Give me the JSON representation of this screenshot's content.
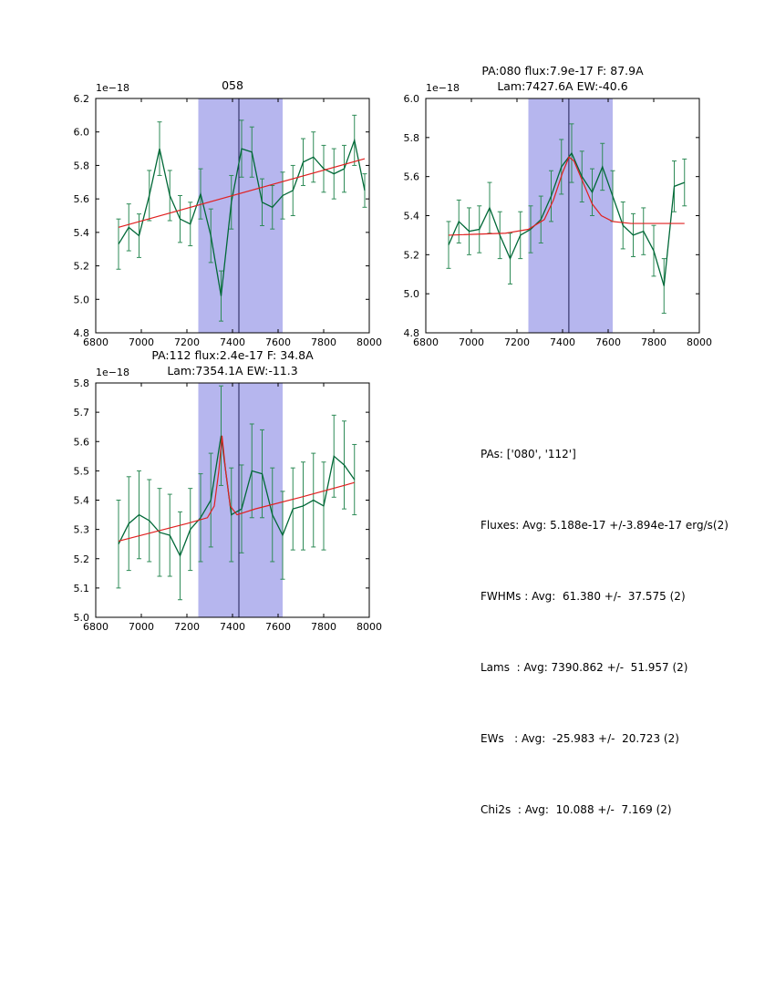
{
  "colors": {
    "line": "#006837",
    "err": "#2e8b57",
    "fit": "#e02020",
    "span": "#b6b6ee",
    "vline": "#1c1c52",
    "axes": "#000000"
  },
  "stats_panel": {
    "lines": [
      "PAs: ['080', '112']",
      "Fluxes: Avg: 5.188e-17 +/-3.894e-17 erg/s(2)",
      "FWHMs : Avg:  61.380 +/-  37.575 (2)",
      "Lams  : Avg: 7390.862 +/-  51.957 (2)",
      "EWs   : Avg:  -25.983 +/-  20.723 (2)",
      "Chi2s  : Avg:  10.088 +/-  7.169 (2)"
    ]
  },
  "chart_data": [
    {
      "type": "line",
      "title_lines": [
        "058"
      ],
      "offset_label": "1e−18",
      "xlabel": "",
      "ylabel": "",
      "xlim": [
        6800,
        8000
      ],
      "ylim": [
        4.8,
        6.2
      ],
      "xticks": [
        6800,
        7000,
        7200,
        7400,
        7600,
        7800,
        8000
      ],
      "xtick_labels": [
        "6800",
        "7000",
        "7200",
        "7400",
        "7600",
        "7800",
        "8000"
      ],
      "yticks": [
        4.8,
        5.0,
        5.2,
        5.4,
        5.6,
        5.8,
        6.0,
        6.2
      ],
      "ytick_labels": [
        "4.8",
        "5.0",
        "5.2",
        "5.4",
        "5.6",
        "5.8",
        "6.0",
        "6.2"
      ],
      "span": [
        7250,
        7620
      ],
      "vline": 7428,
      "x": [
        6900,
        6945,
        6990,
        7035,
        7080,
        7125,
        7170,
        7215,
        7260,
        7305,
        7350,
        7395,
        7440,
        7485,
        7530,
        7575,
        7620,
        7665,
        7710,
        7755,
        7800,
        7845,
        7890,
        7935,
        7980
      ],
      "y": [
        5.33,
        5.43,
        5.38,
        5.62,
        5.9,
        5.62,
        5.48,
        5.45,
        5.63,
        5.38,
        5.02,
        5.58,
        5.9,
        5.88,
        5.58,
        5.55,
        5.62,
        5.65,
        5.82,
        5.85,
        5.78,
        5.75,
        5.78,
        5.95,
        5.65
      ],
      "yerr": [
        0.15,
        0.14,
        0.13,
        0.15,
        0.16,
        0.15,
        0.14,
        0.13,
        0.15,
        0.16,
        0.15,
        0.16,
        0.17,
        0.15,
        0.14,
        0.13,
        0.14,
        0.15,
        0.14,
        0.15,
        0.14,
        0.15,
        0.14,
        0.15,
        0.1
      ],
      "fit": [
        [
          6900,
          5.43
        ],
        [
          7980,
          5.84
        ]
      ]
    },
    {
      "type": "line",
      "title_lines": [
        "PA:080 flux:7.9e-17 F: 87.9A",
        "Lam:7427.6A EW:-40.6"
      ],
      "offset_label": "1e−18",
      "xlabel": "",
      "ylabel": "",
      "xlim": [
        6800,
        8000
      ],
      "ylim": [
        4.8,
        6.0
      ],
      "xticks": [
        6800,
        7000,
        7200,
        7400,
        7600,
        7800,
        8000
      ],
      "xtick_labels": [
        "6800",
        "7000",
        "7200",
        "7400",
        "7600",
        "7800",
        "8000"
      ],
      "yticks": [
        4.8,
        5.0,
        5.2,
        5.4,
        5.6,
        5.8,
        6.0
      ],
      "ytick_labels": [
        "4.8",
        "5.0",
        "5.2",
        "5.4",
        "5.6",
        "5.8",
        "6.0"
      ],
      "span": [
        7250,
        7620
      ],
      "vline": 7427.6,
      "x": [
        6900,
        6945,
        6990,
        7035,
        7080,
        7125,
        7170,
        7215,
        7260,
        7305,
        7350,
        7395,
        7440,
        7485,
        7530,
        7575,
        7620,
        7665,
        7710,
        7755,
        7800,
        7845,
        7890,
        7935
      ],
      "y": [
        5.25,
        5.37,
        5.32,
        5.33,
        5.44,
        5.3,
        5.18,
        5.3,
        5.33,
        5.38,
        5.5,
        5.65,
        5.72,
        5.6,
        5.52,
        5.65,
        5.5,
        5.35,
        5.3,
        5.32,
        5.22,
        5.04,
        5.55,
        5.57
      ],
      "yerr": [
        0.12,
        0.11,
        0.12,
        0.12,
        0.13,
        0.12,
        0.13,
        0.12,
        0.12,
        0.12,
        0.13,
        0.14,
        0.15,
        0.13,
        0.12,
        0.12,
        0.13,
        0.12,
        0.11,
        0.12,
        0.13,
        0.14,
        0.13,
        0.12
      ],
      "fit": [
        [
          6900,
          5.3
        ],
        [
          7150,
          5.31
        ],
        [
          7250,
          5.33
        ],
        [
          7320,
          5.38
        ],
        [
          7360,
          5.48
        ],
        [
          7400,
          5.62
        ],
        [
          7428,
          5.7
        ],
        [
          7450,
          5.68
        ],
        [
          7490,
          5.57
        ],
        [
          7530,
          5.46
        ],
        [
          7570,
          5.4
        ],
        [
          7620,
          5.37
        ],
        [
          7700,
          5.36
        ],
        [
          7935,
          5.36
        ]
      ]
    },
    {
      "type": "line",
      "title_lines": [
        "PA:112 flux:2.4e-17 F: 34.8A",
        "Lam:7354.1A EW:-11.3"
      ],
      "offset_label": "1e−18",
      "xlabel": "",
      "ylabel": "",
      "xlim": [
        6800,
        8000
      ],
      "ylim": [
        5.0,
        5.8
      ],
      "xticks": [
        6800,
        7000,
        7200,
        7400,
        7600,
        7800,
        8000
      ],
      "xtick_labels": [
        "6800",
        "7000",
        "7200",
        "7400",
        "7600",
        "7800",
        "8000"
      ],
      "yticks": [
        5.0,
        5.1,
        5.2,
        5.3,
        5.4,
        5.5,
        5.6,
        5.7,
        5.8
      ],
      "ytick_labels": [
        "5.0",
        "5.1",
        "5.2",
        "5.3",
        "5.4",
        "5.5",
        "5.6",
        "5.7",
        "5.8"
      ],
      "span": [
        7250,
        7620
      ],
      "vline": 7428,
      "x": [
        6900,
        6945,
        6990,
        7035,
        7080,
        7125,
        7170,
        7215,
        7260,
        7305,
        7350,
        7395,
        7440,
        7485,
        7530,
        7575,
        7620,
        7665,
        7710,
        7755,
        7800,
        7845,
        7890,
        7935
      ],
      "y": [
        5.25,
        5.32,
        5.35,
        5.33,
        5.29,
        5.28,
        5.21,
        5.3,
        5.34,
        5.4,
        5.62,
        5.35,
        5.37,
        5.5,
        5.49,
        5.35,
        5.28,
        5.37,
        5.38,
        5.4,
        5.38,
        5.55,
        5.52,
        5.47
      ],
      "yerr": [
        0.15,
        0.16,
        0.15,
        0.14,
        0.15,
        0.14,
        0.15,
        0.14,
        0.15,
        0.16,
        0.17,
        0.16,
        0.15,
        0.16,
        0.15,
        0.16,
        0.15,
        0.14,
        0.15,
        0.16,
        0.15,
        0.14,
        0.15,
        0.12
      ],
      "fit": [
        [
          6900,
          5.26
        ],
        [
          7200,
          5.32
        ],
        [
          7290,
          5.34
        ],
        [
          7320,
          5.38
        ],
        [
          7340,
          5.5
        ],
        [
          7354,
          5.62
        ],
        [
          7370,
          5.5
        ],
        [
          7390,
          5.38
        ],
        [
          7420,
          5.35
        ],
        [
          7500,
          5.37
        ],
        [
          7700,
          5.41
        ],
        [
          7935,
          5.46
        ]
      ]
    }
  ]
}
